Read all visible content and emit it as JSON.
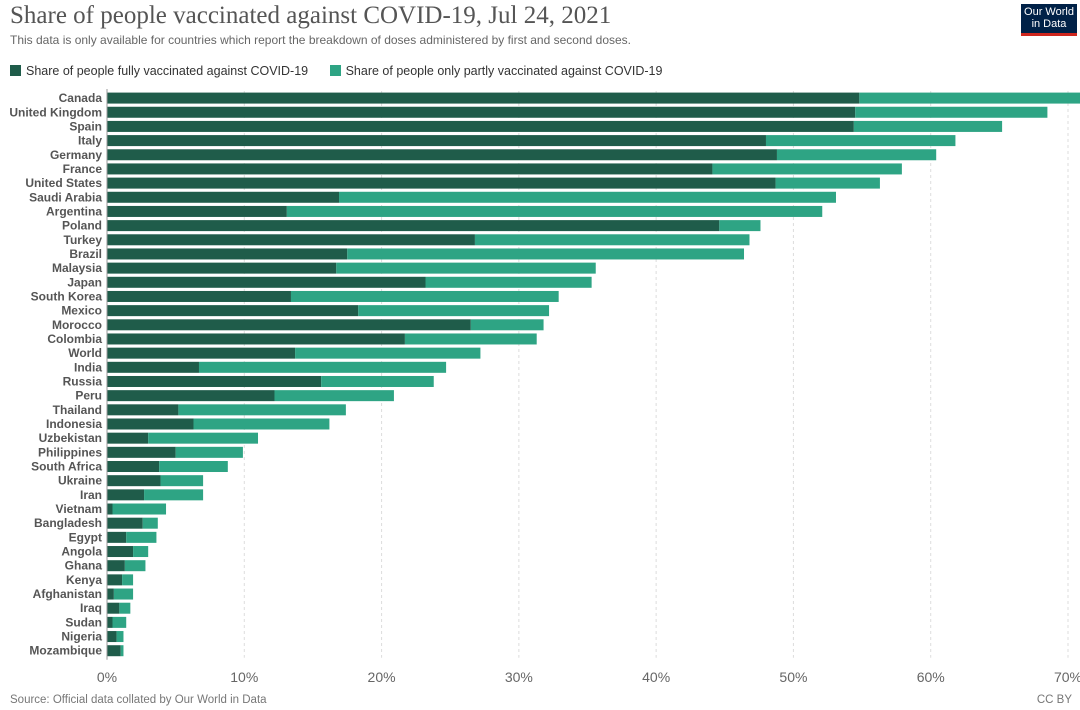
{
  "header": {
    "title": "Share of people vaccinated against COVID-19, Jul 24, 2021",
    "subtitle": "This data is only available for countries which report the breakdown of doses administered by first and second doses.",
    "logo_line1": "Our World",
    "logo_line2": "in Data"
  },
  "colors": {
    "fully": "#1f5c4a",
    "partly": "#2ea484",
    "grid": "#dddddd",
    "logo_bg": "#002147",
    "logo_accent": "#ce261e"
  },
  "footer": {
    "source": "Source: Official data collated by Our World in Data",
    "license": "CC BY"
  },
  "chart_data": {
    "type": "bar",
    "orientation": "horizontal",
    "stacked": true,
    "categories": [
      "Canada",
      "United Kingdom",
      "Spain",
      "Italy",
      "Germany",
      "France",
      "United States",
      "Saudi Arabia",
      "Argentina",
      "Poland",
      "Turkey",
      "Brazil",
      "Malaysia",
      "Japan",
      "South Korea",
      "Mexico",
      "Morocco",
      "Colombia",
      "World",
      "India",
      "Russia",
      "Peru",
      "Thailand",
      "Indonesia",
      "Uzbekistan",
      "Philippines",
      "South Africa",
      "Ukraine",
      "Iran",
      "Vietnam",
      "Bangladesh",
      "Egypt",
      "Angola",
      "Ghana",
      "Kenya",
      "Afghanistan",
      "Iraq",
      "Sudan",
      "Nigeria",
      "Mozambique"
    ],
    "series": [
      {
        "name": "Share of people fully vaccinated against COVID-19",
        "values": [
          54.8,
          54.5,
          54.4,
          48.0,
          48.8,
          44.1,
          48.7,
          16.9,
          13.1,
          44.6,
          26.8,
          17.5,
          16.7,
          23.2,
          13.4,
          18.3,
          26.5,
          21.7,
          13.7,
          6.7,
          15.6,
          12.2,
          5.2,
          6.3,
          3.0,
          5.0,
          3.8,
          3.9,
          2.7,
          0.4,
          2.6,
          1.4,
          1.9,
          1.3,
          1.1,
          0.5,
          0.9,
          0.4,
          0.7,
          1.0
        ]
      },
      {
        "name": "Share of people only partly vaccinated against COVID-19",
        "values": [
          16.1,
          14.0,
          10.8,
          13.8,
          11.6,
          13.8,
          7.6,
          36.2,
          39.0,
          3.0,
          20.0,
          28.9,
          18.9,
          12.1,
          19.5,
          13.9,
          5.3,
          9.6,
          13.5,
          18.0,
          8.2,
          8.7,
          12.2,
          9.9,
          8.0,
          4.9,
          5.0,
          3.1,
          4.3,
          3.9,
          1.1,
          2.2,
          1.1,
          1.5,
          0.8,
          1.4,
          0.8,
          1.0,
          0.5,
          0.2
        ]
      }
    ],
    "xlim": [
      0,
      70
    ],
    "xticks": [
      0,
      10,
      20,
      30,
      40,
      50,
      60,
      70
    ],
    "x_tick_suffix": "%",
    "grid": "vertical dashed",
    "legend_position": "top"
  }
}
